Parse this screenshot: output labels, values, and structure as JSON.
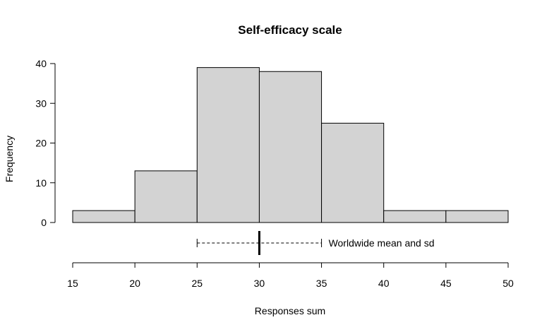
{
  "chart_data": {
    "type": "bar",
    "title": "Self-efficacy scale",
    "xlabel": "Responses sum",
    "ylabel": "Frequency",
    "bins": [
      {
        "start": 15,
        "end": 20,
        "count": 3
      },
      {
        "start": 20,
        "end": 25,
        "count": 13
      },
      {
        "start": 25,
        "end": 30,
        "count": 39
      },
      {
        "start": 30,
        "end": 35,
        "count": 38
      },
      {
        "start": 35,
        "end": 40,
        "count": 25
      },
      {
        "start": 40,
        "end": 45,
        "count": 3
      },
      {
        "start": 45,
        "end": 50,
        "count": 3
      }
    ],
    "x_ticks": [
      "15",
      "20",
      "25",
      "30",
      "35",
      "40",
      "45",
      "50"
    ],
    "y_ticks": [
      "0",
      "10",
      "20",
      "30",
      "40"
    ],
    "xlim": [
      15,
      50
    ],
    "ylim": [
      0,
      40
    ],
    "grid": false,
    "bar_fill": "#d3d3d3",
    "bar_stroke": "#000000",
    "annotation": {
      "label": "Worldwide mean and sd",
      "mean": 30,
      "sd_low": 25,
      "sd_high": 35
    }
  }
}
